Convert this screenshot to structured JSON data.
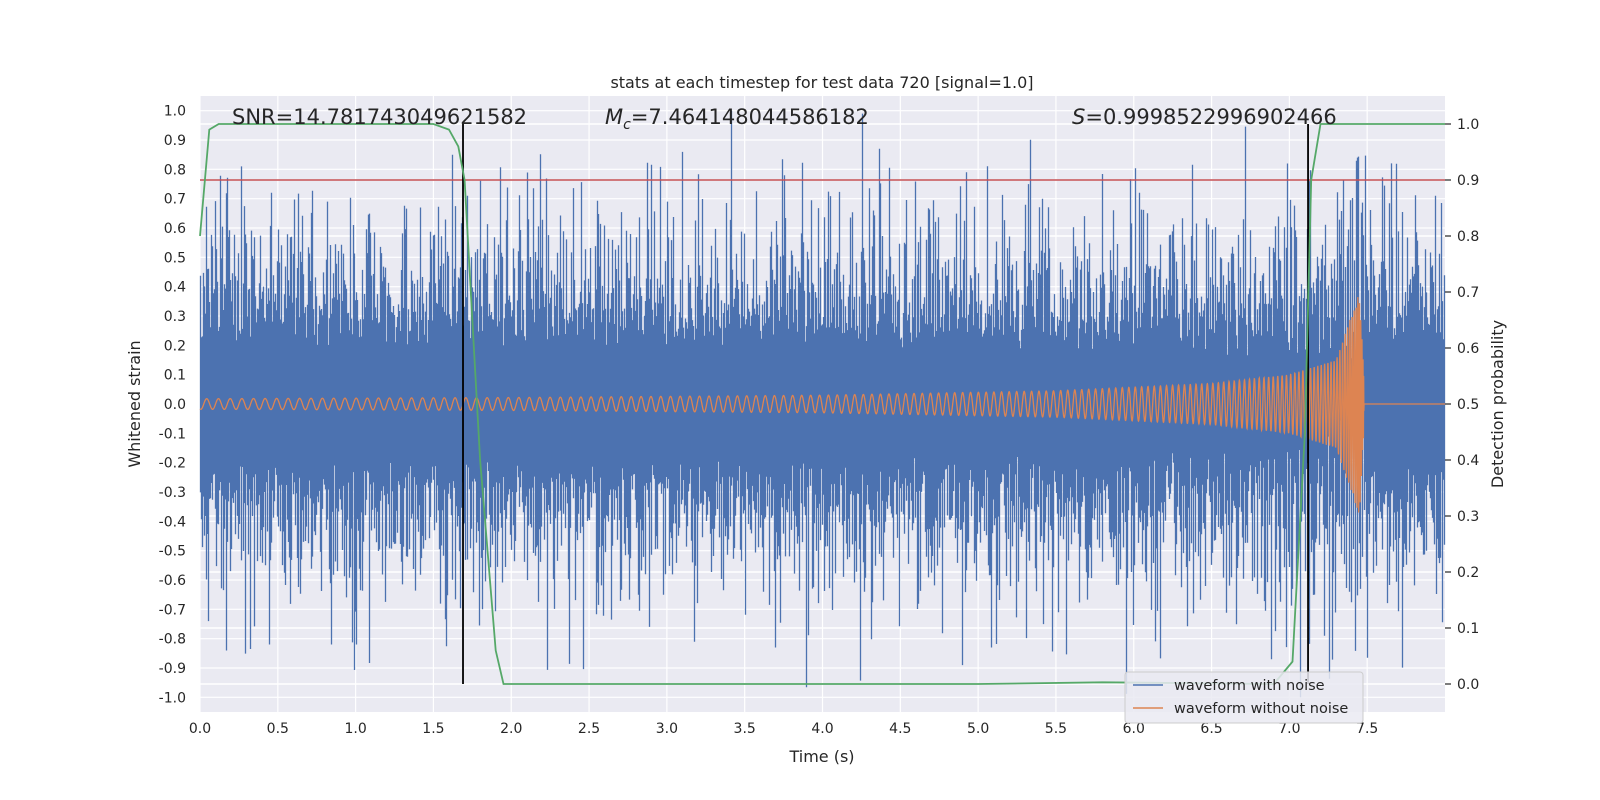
{
  "chart_data": {
    "type": "line",
    "title": "stats at each timestep for test data 720 [signal=1.0]",
    "xlabel": "Time (s)",
    "ylabel": "Whitened strain",
    "y2label": "Detection probability",
    "xlim": [
      0.0,
      8.0
    ],
    "ylim": [
      -1.05,
      1.05
    ],
    "y2lim": [
      -0.05,
      1.05
    ],
    "xticks": [
      "0.0",
      "0.5",
      "1.0",
      "1.5",
      "2.0",
      "2.5",
      "3.0",
      "3.5",
      "4.0",
      "4.5",
      "5.0",
      "5.5",
      "6.0",
      "6.5",
      "7.0",
      "7.5"
    ],
    "yticks": [
      "1.0",
      "0.9",
      "0.8",
      "0.7",
      "0.6",
      "0.5",
      "0.4",
      "0.3",
      "0.2",
      "0.1",
      "0.0",
      "-0.1",
      "-0.2",
      "-0.3",
      "-0.4",
      "-0.5",
      "-0.6",
      "-0.7",
      "-0.8",
      "-0.9",
      "-1.0"
    ],
    "y2ticks": [
      "1.0",
      "0.9",
      "0.8",
      "0.7",
      "0.6",
      "0.5",
      "0.4",
      "0.3",
      "0.2",
      "0.1",
      "0.0"
    ],
    "annotations": {
      "snr": "SNR=14.781743049621582",
      "mc_symbol": "M",
      "mc_sub": "c",
      "mc_value": "=7.464148044586182",
      "s_symbol": "S",
      "s_value": "=0.9998522996902466"
    },
    "threshold": {
      "axis": "right",
      "value": 0.9,
      "color": "#c44e52"
    },
    "vlines": [
      1.69,
      7.12
    ],
    "series": [
      {
        "name": "waveform with noise",
        "axis": "left",
        "color": "#4c72b0",
        "typical_amplitude": 0.38,
        "peaks": [
          {
            "x": 0.27,
            "y": 0.81
          },
          {
            "x": 0.06,
            "y": -0.74
          },
          {
            "x": 0.46,
            "y": 0.72
          },
          {
            "x": 0.82,
            "y": 0.69
          },
          {
            "x": 0.45,
            "y": -0.82
          },
          {
            "x": 0.85,
            "y": -0.82
          },
          {
            "x": 1.01,
            "y": -0.82
          },
          {
            "x": 1.42,
            "y": 0.67
          },
          {
            "x": 1.72,
            "y": 0.71
          },
          {
            "x": 1.82,
            "y": -0.7
          },
          {
            "x": 2.89,
            "y": -0.76
          },
          {
            "x": 3.01,
            "y": 0.69
          },
          {
            "x": 3.7,
            "y": -0.83
          },
          {
            "x": 3.76,
            "y": 0.78
          },
          {
            "x": 4.26,
            "y": 0.99
          },
          {
            "x": 4.37,
            "y": 0.87
          },
          {
            "x": 4.9,
            "y": -0.89
          },
          {
            "x": 4.93,
            "y": 0.79
          },
          {
            "x": 5.09,
            "y": -0.83
          },
          {
            "x": 5.42,
            "y": 0.7
          },
          {
            "x": 6.04,
            "y": 0.72
          },
          {
            "x": 6.89,
            "y": -0.87
          },
          {
            "x": 6.99,
            "y": 0.82
          },
          {
            "x": 7.13,
            "y": 0.76
          },
          {
            "x": 7.44,
            "y": 0.84
          },
          {
            "x": 7.23,
            "y": -0.79
          },
          {
            "x": 7.94,
            "y": 0.71
          }
        ]
      },
      {
        "name": "waveform without noise",
        "axis": "left",
        "color": "#dd8452",
        "envelope": [
          [
            0.0,
            0.018
          ],
          [
            2.0,
            0.022
          ],
          [
            4.0,
            0.03
          ],
          [
            5.5,
            0.045
          ],
          [
            6.5,
            0.07
          ],
          [
            7.0,
            0.1
          ],
          [
            7.3,
            0.15
          ],
          [
            7.45,
            0.38
          ],
          [
            7.49,
            0.0
          ],
          [
            8.0,
            0.0
          ]
        ],
        "merger_time": 7.48
      },
      {
        "name": "detection probability",
        "axis": "right",
        "color": "#55a868",
        "x": [
          0.0,
          0.06,
          0.12,
          0.3,
          1.0,
          1.5,
          1.6,
          1.66,
          1.7,
          1.8,
          1.9,
          1.95,
          2.5,
          5.0,
          5.8,
          6.9,
          7.02,
          7.1,
          7.14,
          7.2,
          7.3,
          8.0
        ],
        "y": [
          0.8,
          0.99,
          1.0,
          1.0,
          1.0,
          1.0,
          0.99,
          0.96,
          0.9,
          0.4,
          0.06,
          0.0,
          0.0,
          0.0,
          0.003,
          0.0,
          0.04,
          0.45,
          0.9,
          1.0,
          1.0,
          1.0
        ]
      }
    ],
    "legend": {
      "location": "lower-right",
      "entries": [
        {
          "label": "waveform with noise",
          "color": "#4c72b0"
        },
        {
          "label": "waveform without noise",
          "color": "#dd8452"
        }
      ]
    },
    "grid": true,
    "background": "#eaeaf2"
  }
}
